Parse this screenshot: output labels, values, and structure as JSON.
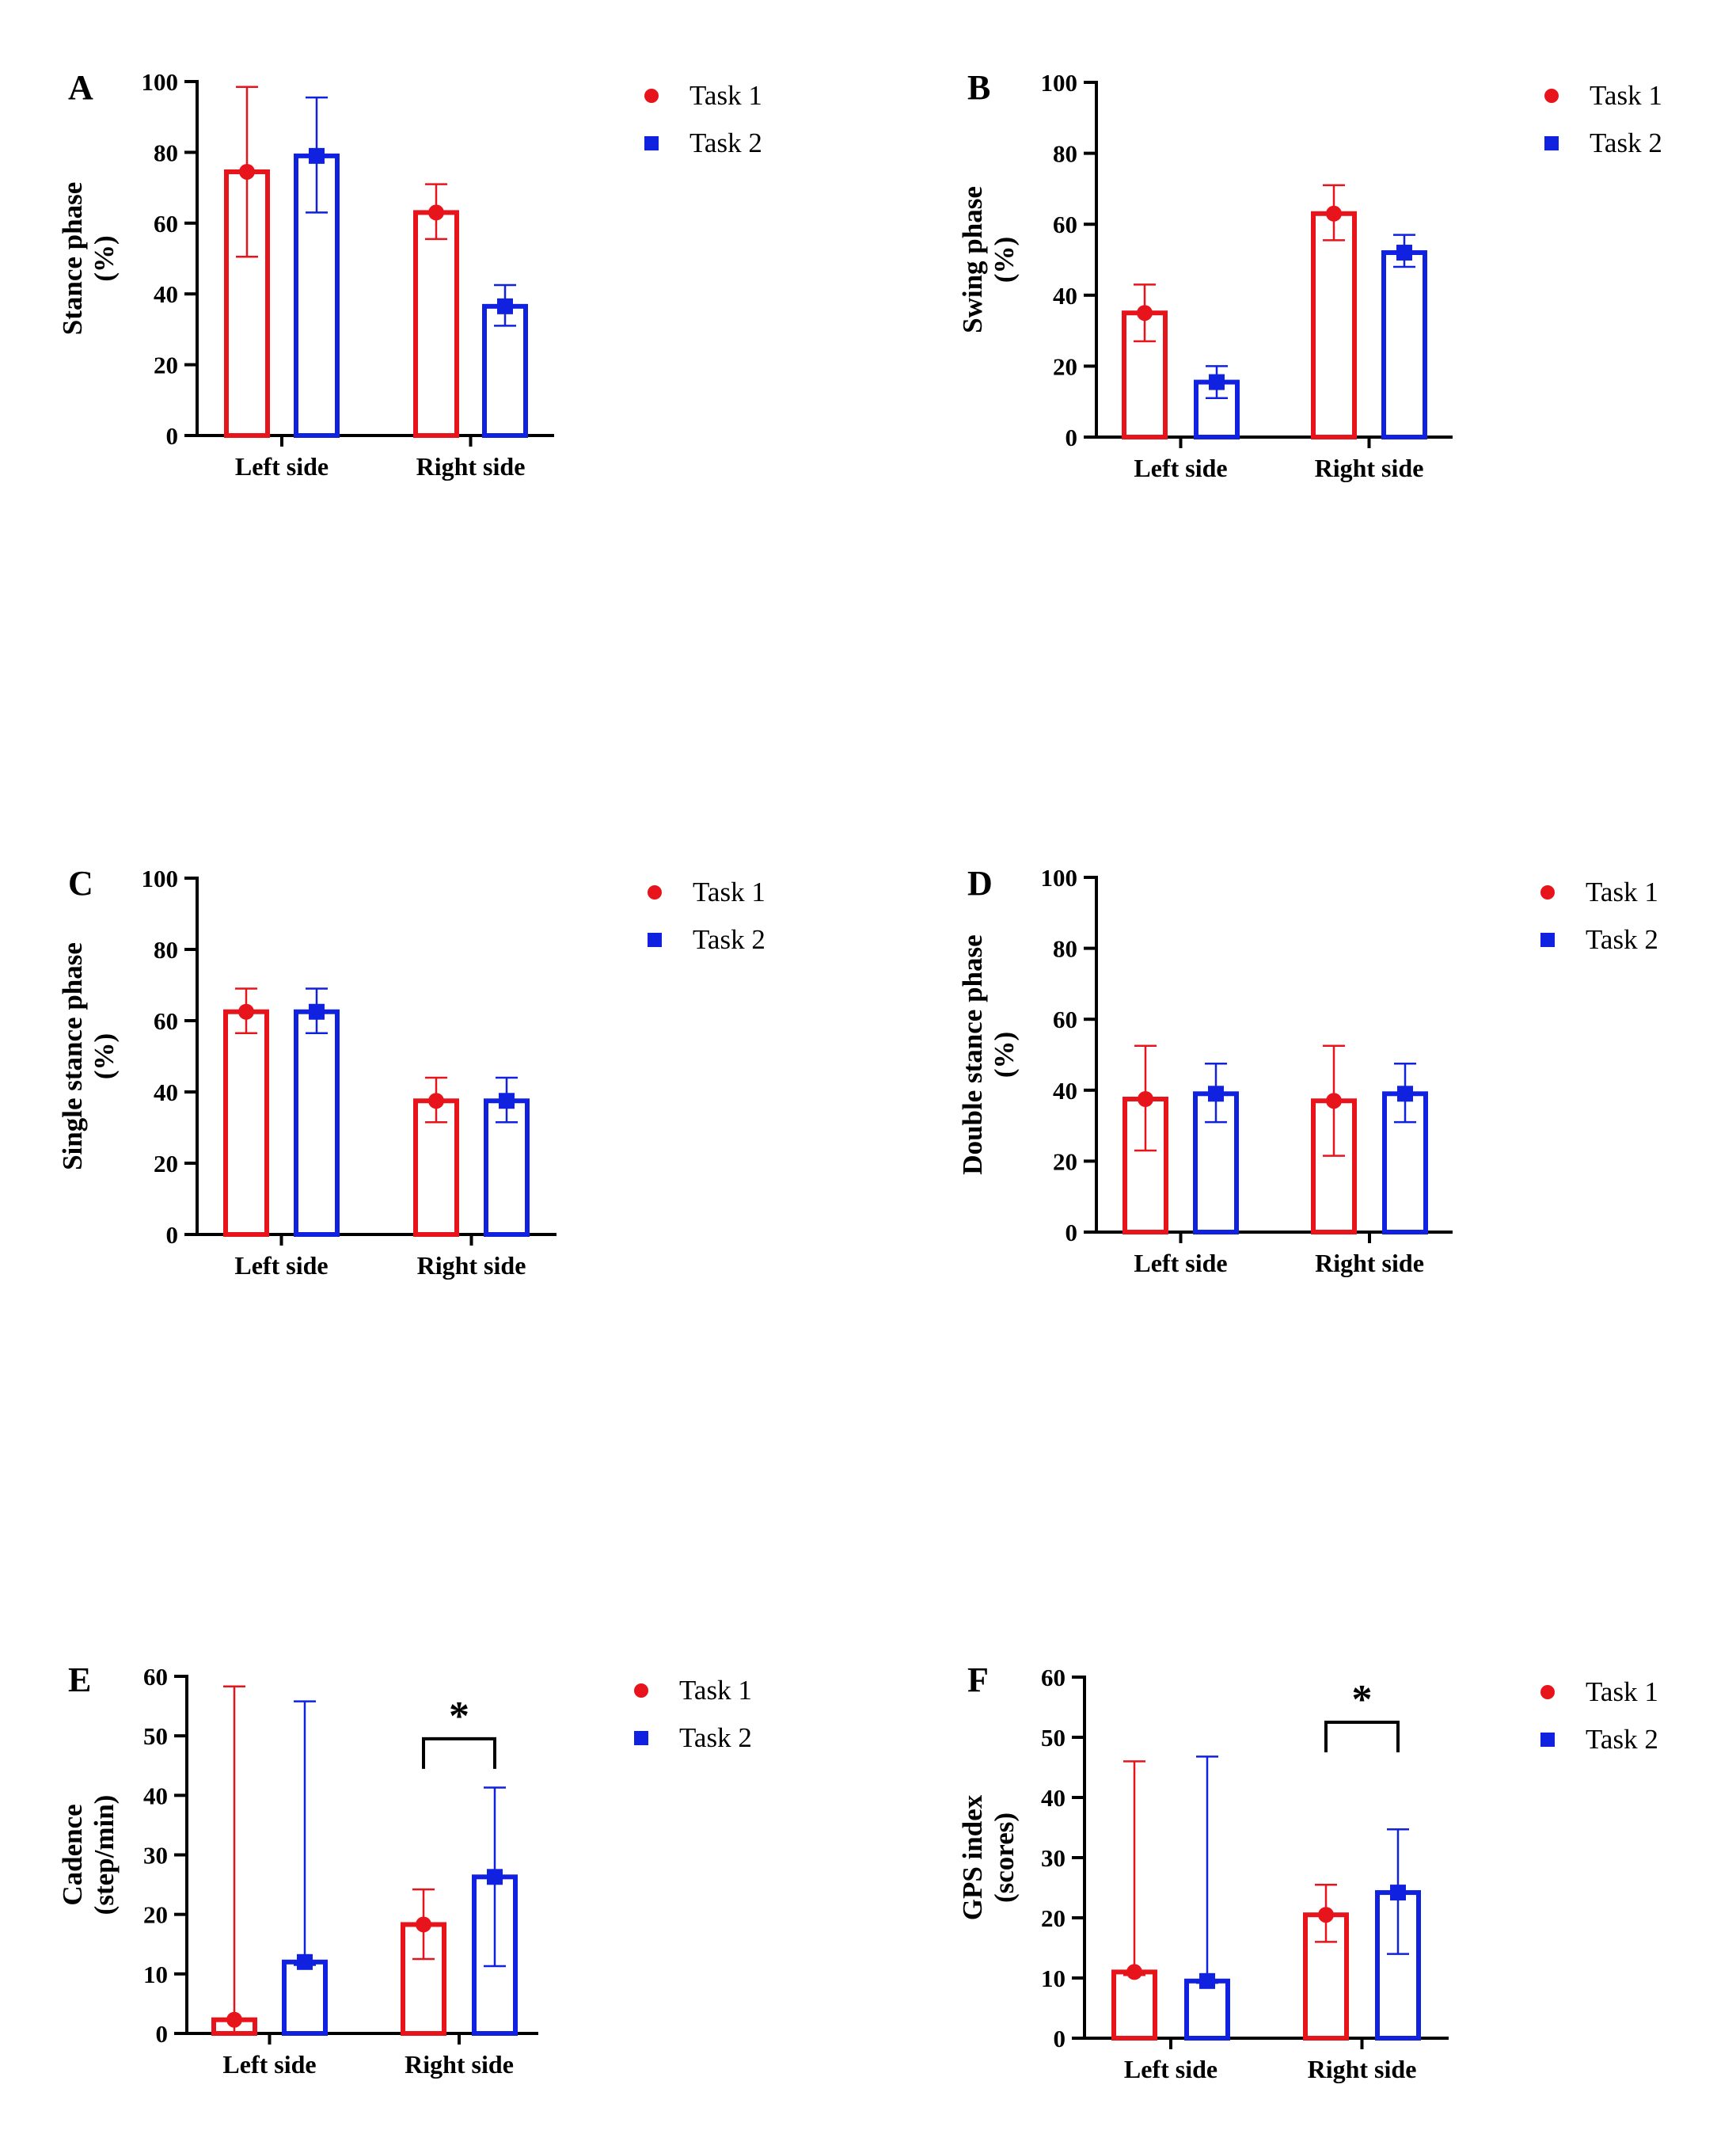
{
  "legend_labels": [
    "Task 1",
    "Task 2"
  ],
  "colors": {
    "task1": "#e8141b",
    "task2": "#1022e0",
    "axis": "#000000"
  },
  "chart_data": [
    {
      "panel": "A",
      "type": "bar",
      "categories": [
        "Left side",
        "Right side"
      ],
      "ylabel": [
        "Stance phase",
        "(%)"
      ],
      "xlabel": "",
      "ylim": [
        0,
        100
      ],
      "yticks": [
        0,
        20,
        40,
        60,
        80,
        100
      ],
      "series": [
        {
          "name": "Task 1",
          "values": [
            74.5,
            63
          ],
          "err_low": [
            50.5,
            55.5
          ],
          "err_high": [
            98.5,
            71
          ]
        },
        {
          "name": "Task 2",
          "values": [
            79,
            36.5
          ],
          "err_low": [
            63,
            31
          ],
          "err_high": [
            95.5,
            42.5
          ]
        }
      ],
      "significance": null
    },
    {
      "panel": "B",
      "type": "bar",
      "categories": [
        "Left side",
        "Right side"
      ],
      "ylabel": [
        "Swing phase",
        "(%)"
      ],
      "xlabel": "",
      "ylim": [
        0,
        100
      ],
      "yticks": [
        0,
        20,
        40,
        60,
        80,
        100
      ],
      "series": [
        {
          "name": "Task 1",
          "values": [
            35,
            63
          ],
          "err_low": [
            27,
            55.5
          ],
          "err_high": [
            43,
            71
          ]
        },
        {
          "name": "Task 2",
          "values": [
            15.5,
            52
          ],
          "err_low": [
            11,
            48
          ],
          "err_high": [
            20,
            57
          ]
        }
      ],
      "significance": null
    },
    {
      "panel": "C",
      "type": "bar",
      "categories": [
        "Left side",
        "Right side"
      ],
      "ylabel": [
        "Single stance phase",
        "(%)"
      ],
      "xlabel": "",
      "ylim": [
        0,
        100
      ],
      "yticks": [
        0,
        20,
        40,
        60,
        80,
        100
      ],
      "series": [
        {
          "name": "Task 1",
          "values": [
            62.5,
            37.5
          ],
          "err_low": [
            56.5,
            31.5
          ],
          "err_high": [
            69,
            44
          ]
        },
        {
          "name": "Task 2",
          "values": [
            62.5,
            37.5
          ],
          "err_low": [
            56.5,
            31.5
          ],
          "err_high": [
            69,
            44
          ]
        }
      ],
      "significance": null
    },
    {
      "panel": "D",
      "type": "bar",
      "categories": [
        "Left side",
        "Right side"
      ],
      "ylabel": [
        "Double stance phase",
        "(%)"
      ],
      "xlabel": "",
      "ylim": [
        0,
        100
      ],
      "yticks": [
        0,
        20,
        40,
        60,
        80,
        100
      ],
      "series": [
        {
          "name": "Task 1",
          "values": [
            37.5,
            37
          ],
          "err_low": [
            23,
            21.5
          ],
          "err_high": [
            52.5,
            52.5
          ]
        },
        {
          "name": "Task 2",
          "values": [
            39,
            39
          ],
          "err_low": [
            31,
            31
          ],
          "err_high": [
            47.5,
            47.5
          ]
        }
      ],
      "significance": null
    },
    {
      "panel": "E",
      "type": "bar",
      "categories": [
        "Left side",
        "Right side"
      ],
      "ylabel": [
        "Cadence",
        "(step/min)"
      ],
      "xlabel": "",
      "ylim": [
        0,
        60
      ],
      "yticks": [
        0,
        10,
        20,
        30,
        40,
        50,
        60
      ],
      "series": [
        {
          "name": "Task 1",
          "values": [
            2.3,
            18.3
          ],
          "err_low": [
            0,
            12.5
          ],
          "err_high": [
            58.3,
            24.2
          ]
        },
        {
          "name": "Task 2",
          "values": [
            12,
            26.3
          ],
          "err_low": [
            11.5,
            11.3
          ],
          "err_high": [
            55.8,
            41.3
          ]
        }
      ],
      "significance": {
        "category": "Right side",
        "label": "*",
        "bracket_y": 49.5
      }
    },
    {
      "panel": "F",
      "type": "bar",
      "categories": [
        "Left side",
        "Right side"
      ],
      "ylabel": [
        "GPS index",
        "(scores)"
      ],
      "xlabel": "",
      "ylim": [
        0,
        60
      ],
      "yticks": [
        0,
        10,
        20,
        30,
        40,
        50,
        60
      ],
      "series": [
        {
          "name": "Task 1",
          "values": [
            11,
            20.5
          ],
          "err_low": [
            10.5,
            16
          ],
          "err_high": [
            46,
            25.5
          ]
        },
        {
          "name": "Task 2",
          "values": [
            9.5,
            24.2
          ],
          "err_low": [
            9.2,
            14
          ],
          "err_high": [
            46.8,
            34.7
          ]
        }
      ],
      "significance": {
        "category": "Right side",
        "label": "*",
        "bracket_y": 52.5
      }
    }
  ]
}
